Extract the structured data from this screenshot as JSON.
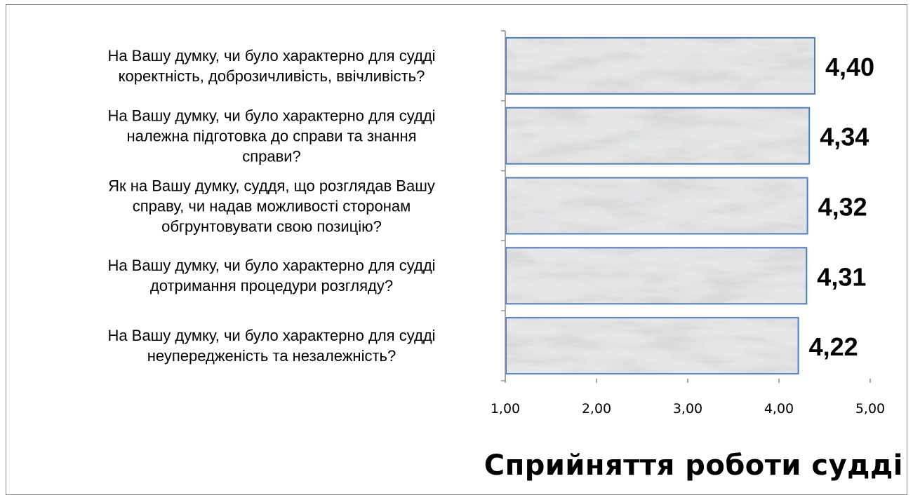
{
  "chart_data": {
    "type": "bar",
    "orientation": "horizontal",
    "title": "Сприйняття роботи судді",
    "categories": [
      "На Вашу думку, чи було характерно для судді коректність, доброзичливість, ввічливість?",
      "На Вашу думку, чи було характерно для судді належна підготовка до справи та знання справи?",
      "Як на Вашу думку, суддя, що розглядав Вашу справу, чи надав можливості сторонам обгрунтовувати свою позицію?",
      "На Вашу думку, чи було характерно для судді дотримання процедури розгляду?",
      "На Вашу думку, чи було характерно для судді неупередженість та незалежність?"
    ],
    "category_lines": [
      [
        "На Вашу думку, чи було характерно для судді",
        "коректність, доброзичливість, ввічливість?"
      ],
      [
        "На Вашу думку, чи було характерно для судді",
        "належна підготовка до справи та знання",
        "справи?"
      ],
      [
        "Як на Вашу думку, суддя, що розглядав Вашу",
        "справу, чи надав можливості сторонам",
        "обгрунтовувати свою позицію?"
      ],
      [
        "На Вашу думку, чи було характерно для судді",
        "дотримання процедури розгляду?"
      ],
      [
        "На Вашу думку, чи було характерно для судді",
        "неупередженість та незалежність?"
      ]
    ],
    "values": [
      4.4,
      4.34,
      4.32,
      4.31,
      4.22
    ],
    "data_labels": [
      "4,40",
      "4,34",
      "4,32",
      "4,31",
      "4,22"
    ],
    "xlim": [
      1.0,
      5.0
    ],
    "x_ticks": [
      1,
      2,
      3,
      4,
      5
    ],
    "x_tick_labels": [
      "1,00",
      "2,00",
      "3,00",
      "4,00",
      "5,00"
    ],
    "grid": false,
    "colors": {
      "bar_fill": "#e4e6e8",
      "bar_border": "#4f7ec0",
      "axis": "#8c8c8c"
    }
  }
}
